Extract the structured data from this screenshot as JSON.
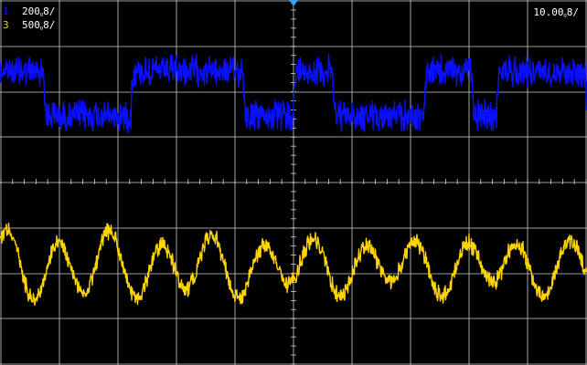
{
  "colors": {
    "background": "#000000",
    "grid": "#cfcfcf",
    "channel1": "#0a10ff",
    "channel3": "#ffd500",
    "text_white": "#ffffff",
    "trigger_marker": "#3aa0ff"
  },
  "channels": [
    {
      "id": "1",
      "scale": "200ᵨ8/",
      "color_key": "channel1"
    },
    {
      "id": "3",
      "scale": "500ᵨ8/",
      "color_key": "channel3"
    }
  ],
  "timebase": "10.00ᵨ8/",
  "trigger_marker_icon": "down-triangle-icon"
}
